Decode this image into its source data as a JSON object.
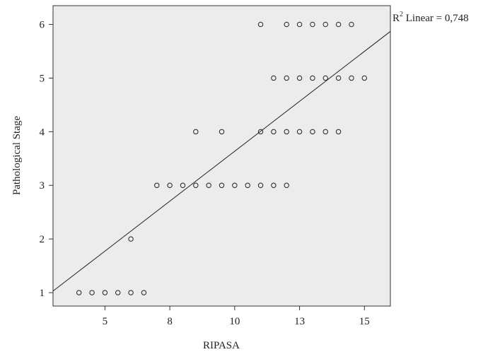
{
  "chart_data": {
    "type": "scatter",
    "xlabel": "RIPASA",
    "ylabel": "Pathological Stage",
    "xlim": [
      3.0,
      16.0
    ],
    "ylim": [
      0.75,
      6.35
    ],
    "xticks": [
      5,
      7.5,
      10,
      12.5,
      15
    ],
    "xtick_labels": [
      "5",
      "8",
      "10",
      "13",
      "15"
    ],
    "yticks": [
      1,
      2,
      3,
      4,
      5,
      6
    ],
    "ytick_labels": [
      "1",
      "2",
      "3",
      "4",
      "5",
      "6"
    ],
    "grid": false,
    "background": "#ececec",
    "fit_line": {
      "label_prefix": "R",
      "label_sup": "2",
      "label_suffix": " Linear = 0,748",
      "x": [
        3.0,
        16.0
      ],
      "y": [
        1.03,
        5.87
      ]
    },
    "points": [
      {
        "x": 4.0,
        "y": 1
      },
      {
        "x": 4.5,
        "y": 1
      },
      {
        "x": 5.0,
        "y": 1
      },
      {
        "x": 5.5,
        "y": 1
      },
      {
        "x": 6.0,
        "y": 1
      },
      {
        "x": 6.5,
        "y": 1
      },
      {
        "x": 6.0,
        "y": 2
      },
      {
        "x": 7.0,
        "y": 3
      },
      {
        "x": 7.5,
        "y": 3
      },
      {
        "x": 8.0,
        "y": 3
      },
      {
        "x": 8.5,
        "y": 3
      },
      {
        "x": 9.0,
        "y": 3
      },
      {
        "x": 9.5,
        "y": 3
      },
      {
        "x": 10.0,
        "y": 3
      },
      {
        "x": 10.5,
        "y": 3
      },
      {
        "x": 11.0,
        "y": 3
      },
      {
        "x": 11.5,
        "y": 3
      },
      {
        "x": 12.0,
        "y": 3
      },
      {
        "x": 8.5,
        "y": 4
      },
      {
        "x": 9.5,
        "y": 4
      },
      {
        "x": 11.0,
        "y": 4
      },
      {
        "x": 11.5,
        "y": 4
      },
      {
        "x": 12.0,
        "y": 4
      },
      {
        "x": 12.5,
        "y": 4
      },
      {
        "x": 13.0,
        "y": 4
      },
      {
        "x": 13.5,
        "y": 4
      },
      {
        "x": 14.0,
        "y": 4
      },
      {
        "x": 11.5,
        "y": 5
      },
      {
        "x": 12.0,
        "y": 5
      },
      {
        "x": 12.5,
        "y": 5
      },
      {
        "x": 13.0,
        "y": 5
      },
      {
        "x": 13.5,
        "y": 5
      },
      {
        "x": 14.0,
        "y": 5
      },
      {
        "x": 14.5,
        "y": 5
      },
      {
        "x": 15.0,
        "y": 5
      },
      {
        "x": 11.0,
        "y": 6
      },
      {
        "x": 12.0,
        "y": 6
      },
      {
        "x": 12.5,
        "y": 6
      },
      {
        "x": 13.0,
        "y": 6
      },
      {
        "x": 13.5,
        "y": 6
      },
      {
        "x": 14.0,
        "y": 6
      },
      {
        "x": 14.5,
        "y": 6
      }
    ]
  }
}
